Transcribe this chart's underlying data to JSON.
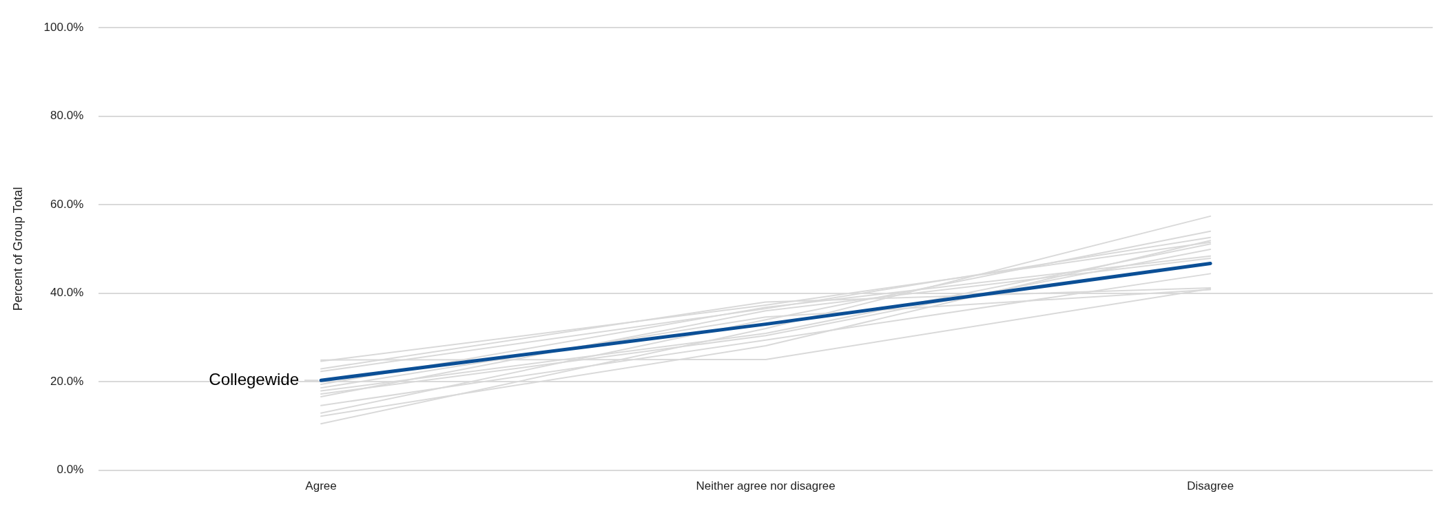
{
  "chart_data": {
    "type": "line",
    "ylabel": "Percent of Group Total",
    "categories": [
      "Agree",
      "Neither agree nor disagree",
      "Disagree"
    ],
    "ylim": [
      0,
      100
    ],
    "yticks": [
      {
        "value": 0,
        "label": "0.0%"
      },
      {
        "value": 20,
        "label": "20.0%"
      },
      {
        "value": 40,
        "label": "40.0%"
      },
      {
        "value": 60,
        "label": "60.0%"
      },
      {
        "value": 80,
        "label": "80.0%"
      },
      {
        "value": 100,
        "label": "100.0%"
      }
    ],
    "grid": "y",
    "legend": false,
    "marker": "none",
    "series": [
      {
        "color": "#d9d9d9",
        "values": [
          24.9,
          25.0,
          41.0
        ]
      },
      {
        "color": "#d9d9d9",
        "values": [
          24.6,
          37.3,
          51.5
        ]
      },
      {
        "color": "#d9d9d9",
        "values": [
          22.9,
          38.0,
          41.2
        ]
      },
      {
        "color": "#d9d9d9",
        "values": [
          22.3,
          36.5,
          52.6
        ]
      },
      {
        "color": "#d9d9d9",
        "values": [
          19.4,
          36.8,
          48.4
        ]
      },
      {
        "color": "#d9d9d9",
        "values": [
          18.6,
          34.6,
          40.8
        ]
      },
      {
        "color": "#d9d9d9",
        "values": [
          17.9,
          30.9,
          51.1
        ]
      },
      {
        "color": "#d9d9d9",
        "values": [
          17.2,
          30.4,
          49.9
        ]
      },
      {
        "color": "#d9d9d9",
        "values": [
          16.6,
          36.0,
          47.9
        ]
      },
      {
        "color": "#d9d9d9",
        "values": [
          14.6,
          29.4,
          44.4
        ]
      },
      {
        "color": "#d9d9d9",
        "values": [
          12.9,
          34.0,
          54.0
        ]
      },
      {
        "color": "#d9d9d9",
        "values": [
          12.2,
          28.1,
          51.9
        ]
      },
      {
        "color": "#d9d9d9",
        "values": [
          10.5,
          32.0,
          57.4
        ]
      },
      {
        "name": "Collegewide",
        "color": "#0b4f96",
        "values": [
          20.3,
          33.0,
          46.7
        ]
      }
    ]
  }
}
